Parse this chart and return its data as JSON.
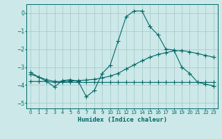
{
  "xlabel": "Humidex (Indice chaleur)",
  "background_color": "#cce8e8",
  "grid_color": "#aacccc",
  "line_color": "#006666",
  "xlim": [
    -0.5,
    23.5
  ],
  "ylim": [
    -5.3,
    0.5
  ],
  "yticks": [
    0,
    -1,
    -2,
    -3,
    -4,
    -5
  ],
  "xticks": [
    0,
    1,
    2,
    3,
    4,
    5,
    6,
    7,
    8,
    9,
    10,
    11,
    12,
    13,
    14,
    15,
    16,
    17,
    18,
    19,
    20,
    21,
    22,
    23
  ],
  "series": [
    {
      "x": [
        0,
        1,
        2,
        3,
        4,
        5,
        6,
        7,
        8,
        9,
        10,
        11,
        12,
        13,
        14,
        15,
        16,
        17,
        18,
        19,
        20,
        21,
        22,
        23
      ],
      "y": [
        -3.3,
        -3.55,
        -3.8,
        -4.1,
        -3.75,
        -3.7,
        -3.8,
        -4.65,
        -4.3,
        -3.35,
        -2.9,
        -1.55,
        -0.2,
        0.12,
        0.12,
        -0.75,
        -1.2,
        -2.0,
        -2.05,
        -3.0,
        -3.35,
        -3.85,
        -3.95,
        -4.05
      ]
    },
    {
      "x": [
        0,
        1,
        2,
        3,
        4,
        5,
        6,
        7,
        8,
        9,
        10,
        11,
        12,
        13,
        14,
        15,
        16,
        17,
        18,
        19,
        20,
        21,
        22,
        23
      ],
      "y": [
        -3.4,
        -3.55,
        -3.7,
        -3.8,
        -3.8,
        -3.78,
        -3.75,
        -3.72,
        -3.68,
        -3.6,
        -3.5,
        -3.35,
        -3.1,
        -2.88,
        -2.65,
        -2.45,
        -2.3,
        -2.2,
        -2.1,
        -2.08,
        -2.15,
        -2.25,
        -2.35,
        -2.45
      ]
    },
    {
      "x": [
        0,
        1,
        2,
        3,
        4,
        5,
        6,
        7,
        8,
        9,
        10,
        11,
        12,
        13,
        14,
        15,
        16,
        17,
        18,
        19,
        20,
        21,
        22,
        23
      ],
      "y": [
        -3.8,
        -3.8,
        -3.8,
        -3.85,
        -3.85,
        -3.85,
        -3.85,
        -3.85,
        -3.85,
        -3.85,
        -3.85,
        -3.85,
        -3.85,
        -3.85,
        -3.85,
        -3.85,
        -3.85,
        -3.85,
        -3.85,
        -3.85,
        -3.85,
        -3.85,
        -3.85,
        -3.85
      ]
    }
  ]
}
